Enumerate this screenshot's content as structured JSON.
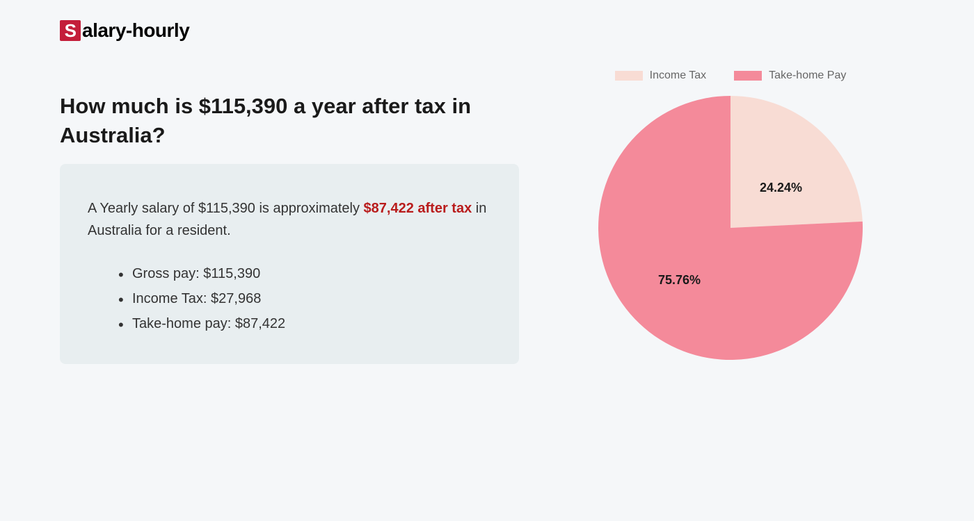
{
  "logo": {
    "s_char": "S",
    "rest": "alary-hourly"
  },
  "heading": "How much is $115,390 a year after tax in Australia?",
  "summary": {
    "text_prefix": "A Yearly salary of $115,390 is approximately ",
    "highlight": "$87,422 after tax",
    "text_suffix": " in Australia for a resident.",
    "items": [
      "Gross pay: $115,390",
      "Income Tax: $27,968",
      "Take-home pay: $87,422"
    ]
  },
  "chart": {
    "type": "pie",
    "background_color": "#f5f7f9",
    "summary_box_bg": "#e8eef0",
    "legend": [
      {
        "label": "Income Tax",
        "color": "#f8dcd4"
      },
      {
        "label": "Take-home Pay",
        "color": "#f48a9a"
      }
    ],
    "slices": [
      {
        "name": "Income Tax",
        "value": 24.24,
        "label": "24.24%",
        "color": "#f8dcd4"
      },
      {
        "name": "Take-home Pay",
        "value": 75.76,
        "label": "75.76%",
        "color": "#f48a9a"
      }
    ],
    "label_fontsize": 18,
    "label_fontweight": 700,
    "label_color": "#1a1a1a",
    "legend_fontsize": 16,
    "legend_color": "#666666",
    "radius": 190,
    "start_angle_deg": 0
  }
}
